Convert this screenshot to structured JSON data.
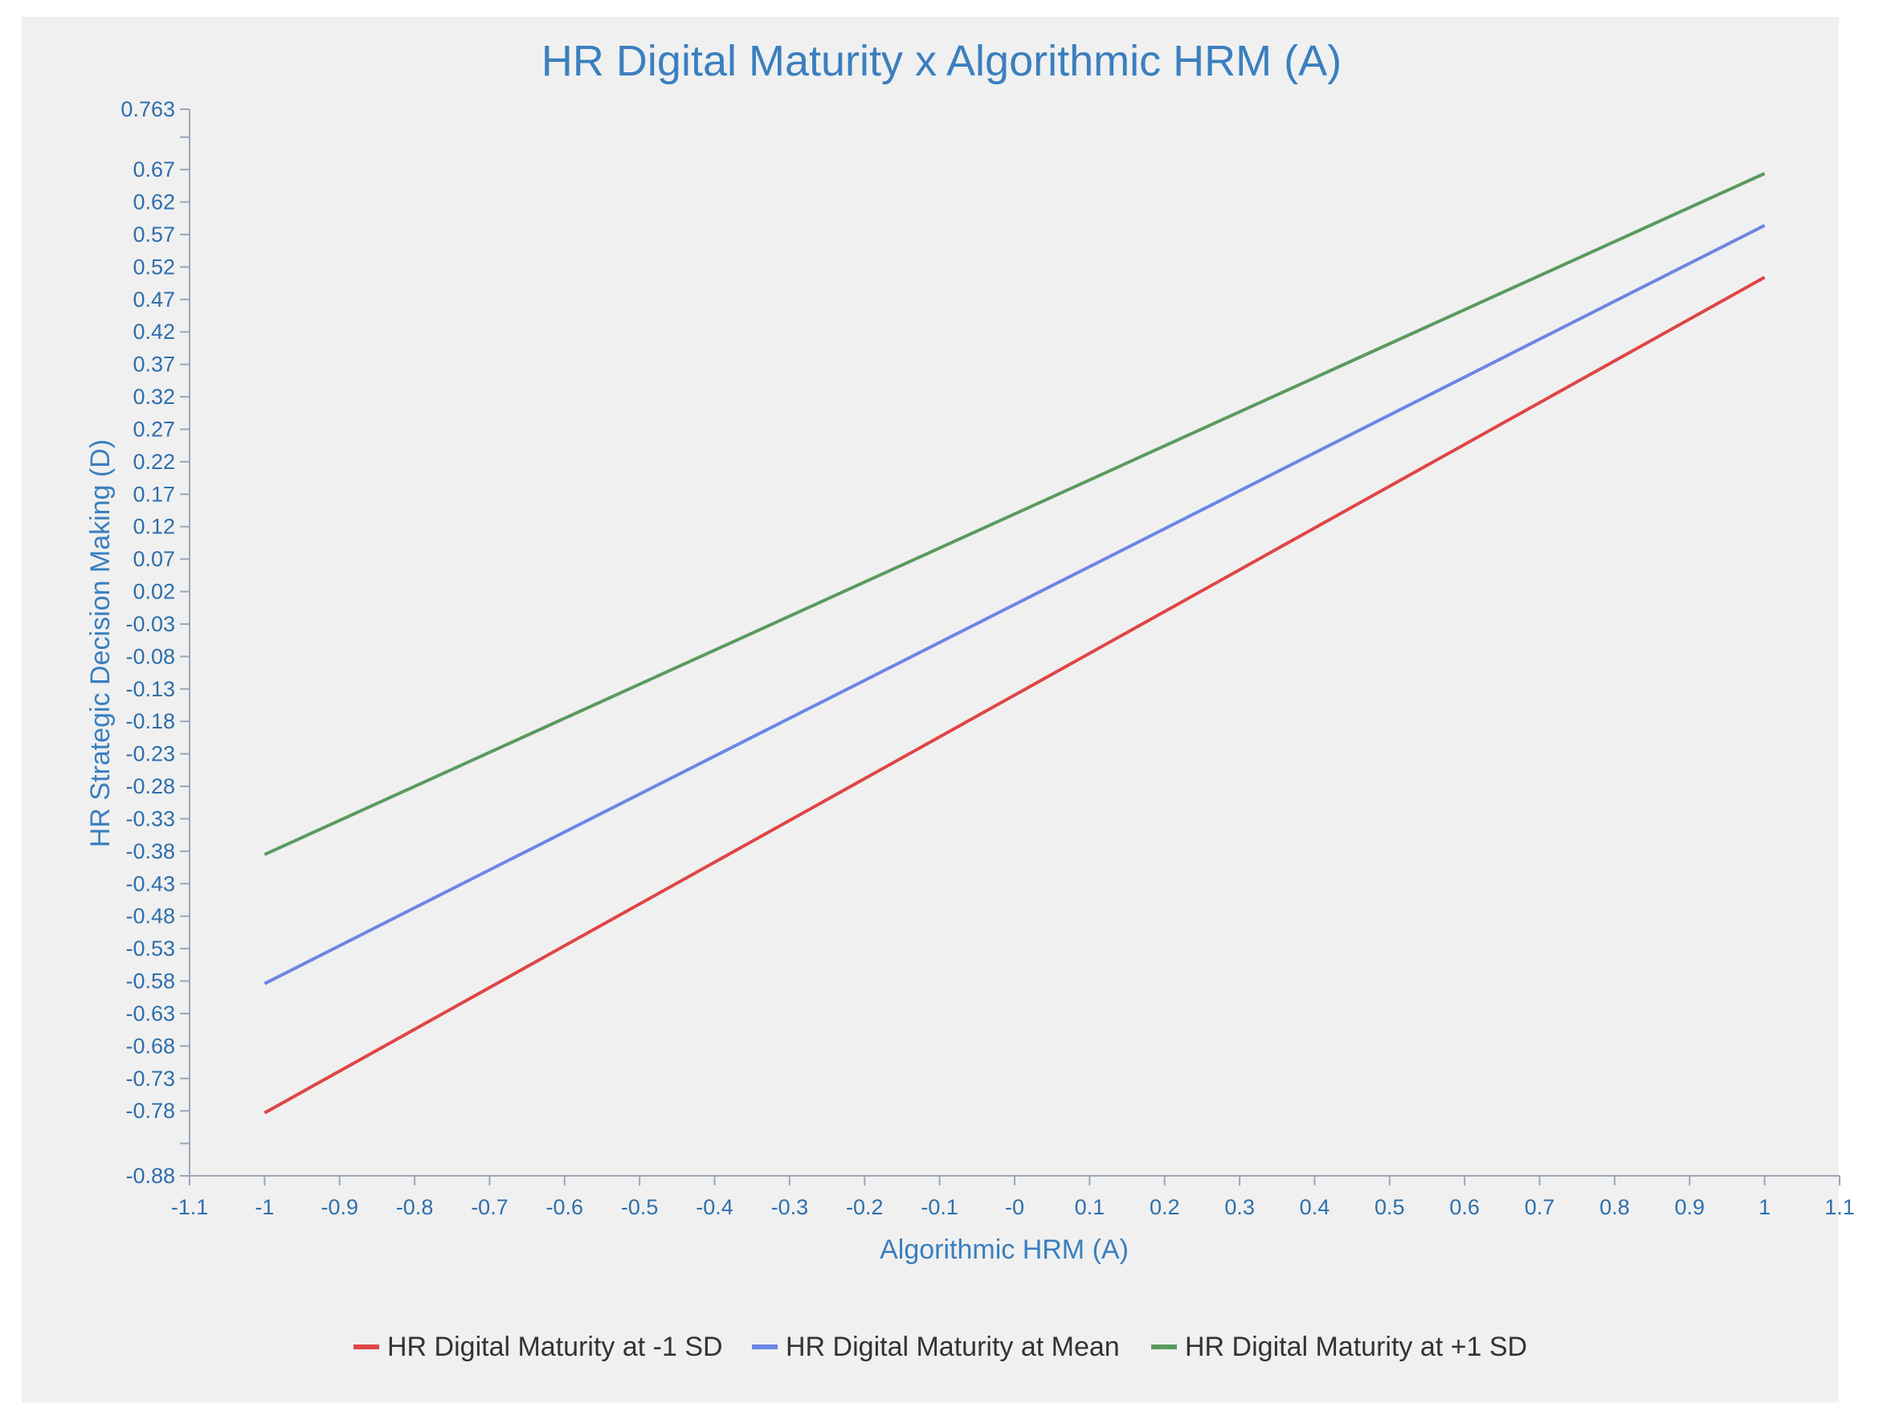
{
  "chart_data": {
    "type": "line",
    "title": "HR Digital Maturity x Algorithmic HRM (A)",
    "xlabel": "Algorithmic HRM (A)",
    "ylabel": "HR Strategic Decision Making (D)",
    "xlim": [
      -1.1,
      1.1
    ],
    "ylim": [
      -0.88,
      0.763
    ],
    "x_ticks": [
      "-1.1",
      "-1",
      "-0.9",
      "-0.8",
      "-0.7",
      "-0.6",
      "-0.5",
      "-0.4",
      "-0.3",
      "-0.2",
      "-0.1",
      "-0",
      "0.1",
      "0.2",
      "0.3",
      "0.4",
      "0.5",
      "0.6",
      "0.7",
      "0.8",
      "0.9",
      "1",
      "1.1"
    ],
    "y_ticks": [
      "-0.88",
      "-0.78",
      "-0.73",
      "-0.68",
      "-0.63",
      "-0.58",
      "-0.53",
      "-0.48",
      "-0.43",
      "-0.38",
      "-0.33",
      "-0.28",
      "-0.23",
      "-0.18",
      "-0.13",
      "-0.08",
      "-0.03",
      "0.02",
      "0.07",
      "0.12",
      "0.17",
      "0.22",
      "0.27",
      "0.32",
      "0.37",
      "0.42",
      "0.47",
      "0.52",
      "0.57",
      "0.62",
      "0.67",
      "0.763"
    ],
    "grid": false,
    "legend_position": "bottom",
    "series": [
      {
        "name": "HR Digital Maturity at -1 SD",
        "color": "#e04545",
        "x": [
          -1,
          1
        ],
        "y": [
          -0.783,
          0.504
        ]
      },
      {
        "name": "HR Digital Maturity at Mean",
        "color": "#6b86e6",
        "x": [
          -1,
          1
        ],
        "y": [
          -0.584,
          0.584
        ]
      },
      {
        "name": "HR Digital Maturity at +1 SD",
        "color": "#5a9a5e",
        "x": [
          -1,
          1
        ],
        "y": [
          -0.385,
          0.664
        ]
      }
    ]
  }
}
